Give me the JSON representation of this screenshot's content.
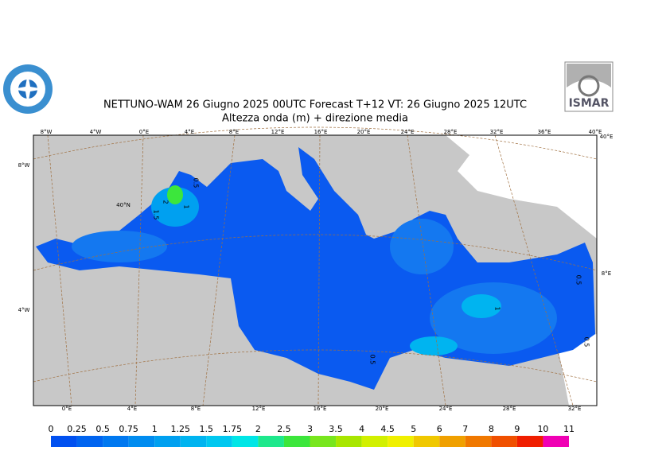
{
  "header": {
    "title": "NETTUNO-WAM  26   Giugno  2025 00UTC Forecast T+12 VT: 26   Giugno  2025 12UTC",
    "subtitle": "Altezza onda (m) + direzione media",
    "logo_right": "ISMAR"
  },
  "graticule": {
    "top": [
      "8°W",
      "4°W",
      "0°E",
      "4°E",
      "8°E",
      "12°E",
      "16°E",
      "20°E",
      "24°E",
      "28°E",
      "32°E",
      "36°E",
      "40°E"
    ],
    "bottom": [
      "0°E",
      "4°E",
      "8°E",
      "12°E",
      "16°E",
      "20°E",
      "24°E",
      "28°E",
      "32°E"
    ],
    "left": [
      "8°W",
      "4°W"
    ],
    "right": [
      "40°E",
      "8°E"
    ],
    "inner": [
      "40°N"
    ]
  },
  "contour_labels": [
    "0.5",
    "1",
    "2",
    "1.5",
    "0.5",
    "0.5",
    "1",
    "0.5"
  ],
  "legend": {
    "levels": [
      0,
      0.25,
      0.5,
      0.75,
      1,
      1.25,
      1.5,
      1.75,
      2,
      2.5,
      3,
      3.5,
      4,
      4.5,
      5,
      6,
      7,
      8,
      9,
      10,
      11
    ],
    "colors": [
      "#0050f0",
      "#0064f0",
      "#0078f0",
      "#008cf0",
      "#00a0f0",
      "#00b4f0",
      "#00c8f0",
      "#00e6e6",
      "#1ee88c",
      "#3ce63c",
      "#78e61e",
      "#a8e600",
      "#d2f000",
      "#f0f000",
      "#f0c800",
      "#f0a000",
      "#f07800",
      "#f05000",
      "#f01e00",
      "#f000b4"
    ]
  }
}
